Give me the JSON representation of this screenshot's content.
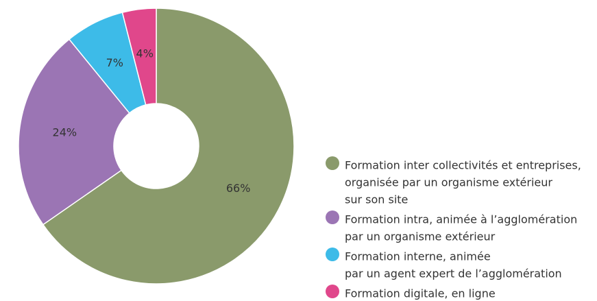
{
  "chart_data": {
    "type": "pie",
    "categories": [
      [
        "Formation inter collectivités et entreprises,",
        "organisée par un organisme extérieur",
        "sur son site"
      ],
      [
        "Formation intra, animée à l’agglomération",
        "par un organisme extérieur"
      ],
      [
        "Formation interne, animée",
        "par un agent expert de l’agglomération"
      ],
      [
        "Formation digitale, en ligne"
      ]
    ],
    "values": [
      66,
      24,
      7,
      4
    ],
    "value_labels": [
      "66%",
      "24%",
      "7%",
      "4%"
    ],
    "colors": [
      "#8a9a6b",
      "#9b75b4",
      "#3dbbe8",
      "#e0478b"
    ],
    "legend": "right"
  }
}
